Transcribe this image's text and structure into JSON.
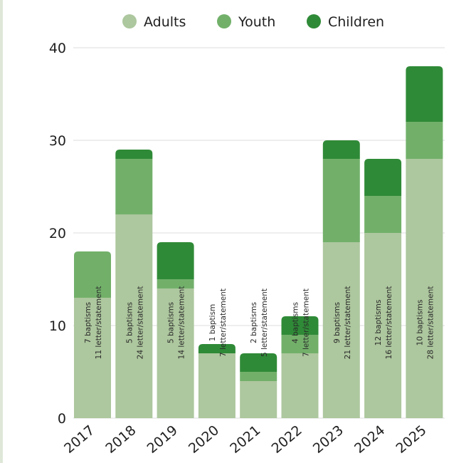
{
  "chart_data": {
    "type": "bar",
    "stacked": true,
    "categories": [
      "2017",
      "2018",
      "2019",
      "2020",
      "2021",
      "2022",
      "2023",
      "2024",
      "2025"
    ],
    "series": [
      {
        "name": "Adults",
        "color": "#adc79e",
        "values": [
          13,
          22,
          14,
          7,
          4,
          7,
          19,
          20,
          28
        ]
      },
      {
        "name": "Youth",
        "color": "#72b06a",
        "values": [
          5,
          6,
          1,
          0,
          1,
          2,
          9,
          4,
          4
        ]
      },
      {
        "name": "Children",
        "color": "#2f8a37",
        "values": [
          0,
          1,
          4,
          1,
          2,
          2,
          2,
          4,
          6
        ]
      }
    ],
    "bar_labels": [
      [
        "7 baptisms",
        "11 letter/statement"
      ],
      [
        "5 baptisms",
        "24 letter/statement"
      ],
      [
        "5 baptisms",
        "14 letter/statement"
      ],
      [
        "1 baptism",
        "7 letter/statement"
      ],
      [
        "2 baptisms",
        "5 letter/statement"
      ],
      [
        "4 baptisms",
        "7 letter/statement"
      ],
      [
        "9 baptisms",
        "21 letter/statement"
      ],
      [
        "12 baptisms",
        "16 letter/statement"
      ],
      [
        "10 baptisms",
        "28 letter/statement"
      ]
    ],
    "yticks": [
      0,
      10,
      20,
      30,
      40
    ],
    "ylim": [
      0,
      40
    ],
    "grid": true,
    "legend_position": "top-center"
  }
}
